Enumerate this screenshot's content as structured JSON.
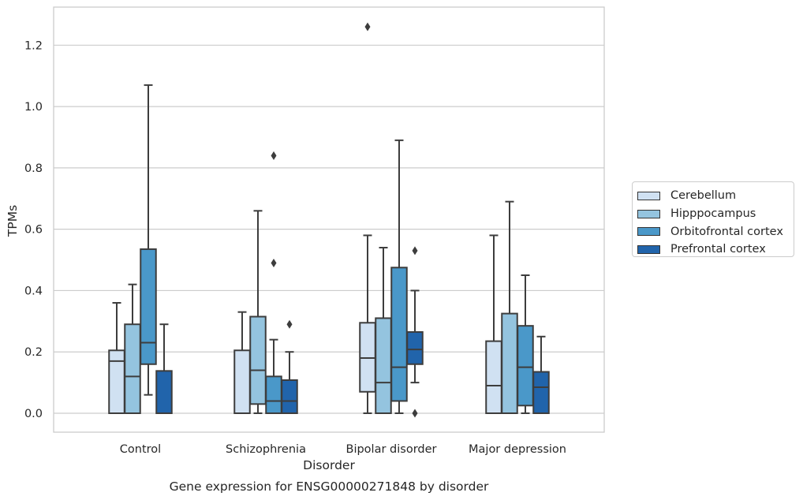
{
  "chart_data": {
    "type": "box",
    "title": "",
    "xlabel": "Disorder",
    "ylabel": "TPMs",
    "caption": "Gene expression for ENSG00000271848 by disorder",
    "ylim": [
      -0.06,
      1.32
    ],
    "yticks": [
      "0.0",
      "0.2",
      "0.4",
      "0.6",
      "0.8",
      "1.0",
      "1.2"
    ],
    "grid": "horizontal",
    "legend_position": "right",
    "categories": [
      "Control",
      "Schizophrenia",
      "Bipolar disorder",
      "Major depression"
    ],
    "series": [
      {
        "name": "Cerebellum",
        "color": "#d0e1f2",
        "boxes": [
          {
            "whisker_low": 0.0,
            "q1": 0.0,
            "median": 0.17,
            "q3": 0.205,
            "whisker_high": 0.36,
            "outliers": []
          },
          {
            "whisker_low": 0.0,
            "q1": 0.0,
            "median": 0.0,
            "q3": 0.205,
            "whisker_high": 0.33,
            "outliers": []
          },
          {
            "whisker_low": 0.0,
            "q1": 0.07,
            "median": 0.18,
            "q3": 0.295,
            "whisker_high": 0.58,
            "outliers": [
              1.26
            ]
          },
          {
            "whisker_low": 0.0,
            "q1": 0.0,
            "median": 0.09,
            "q3": 0.235,
            "whisker_high": 0.58,
            "outliers": []
          }
        ]
      },
      {
        "name": "Hipppocampus",
        "color": "#94c4df",
        "boxes": [
          {
            "whisker_low": 0.0,
            "q1": 0.0,
            "median": 0.12,
            "q3": 0.29,
            "whisker_high": 0.42,
            "outliers": []
          },
          {
            "whisker_low": 0.0,
            "q1": 0.03,
            "median": 0.14,
            "q3": 0.315,
            "whisker_high": 0.66,
            "outliers": []
          },
          {
            "whisker_low": 0.0,
            "q1": 0.0,
            "median": 0.1,
            "q3": 0.31,
            "whisker_high": 0.54,
            "outliers": []
          },
          {
            "whisker_low": 0.0,
            "q1": 0.0,
            "median": 0.0,
            "q3": 0.325,
            "whisker_high": 0.69,
            "outliers": []
          }
        ]
      },
      {
        "name": "Orbitofrontal cortex",
        "color": "#4a98c9",
        "boxes": [
          {
            "whisker_low": 0.06,
            "q1": 0.16,
            "median": 0.23,
            "q3": 0.535,
            "whisker_high": 1.07,
            "outliers": []
          },
          {
            "whisker_low": 0.0,
            "q1": 0.0,
            "median": 0.04,
            "q3": 0.12,
            "whisker_high": 0.24,
            "outliers": [
              0.84,
              0.49
            ]
          },
          {
            "whisker_low": 0.0,
            "q1": 0.04,
            "median": 0.15,
            "q3": 0.475,
            "whisker_high": 0.89,
            "outliers": []
          },
          {
            "whisker_low": 0.0,
            "q1": 0.025,
            "median": 0.15,
            "q3": 0.285,
            "whisker_high": 0.45,
            "outliers": []
          }
        ]
      },
      {
        "name": "Prefrontal cortex",
        "color": "#2164ab",
        "boxes": [
          {
            "whisker_low": 0.0,
            "q1": 0.0,
            "median": 0.0,
            "q3": 0.138,
            "whisker_high": 0.29,
            "outliers": []
          },
          {
            "whisker_low": 0.0,
            "q1": 0.0,
            "median": 0.04,
            "q3": 0.108,
            "whisker_high": 0.2,
            "outliers": [
              0.29
            ]
          },
          {
            "whisker_low": 0.1,
            "q1": 0.16,
            "median": 0.208,
            "q3": 0.265,
            "whisker_high": 0.4,
            "outliers": [
              0.53,
              0.0
            ]
          },
          {
            "whisker_low": 0.0,
            "q1": 0.0,
            "median": 0.085,
            "q3": 0.135,
            "whisker_high": 0.25,
            "outliers": []
          }
        ]
      }
    ]
  }
}
